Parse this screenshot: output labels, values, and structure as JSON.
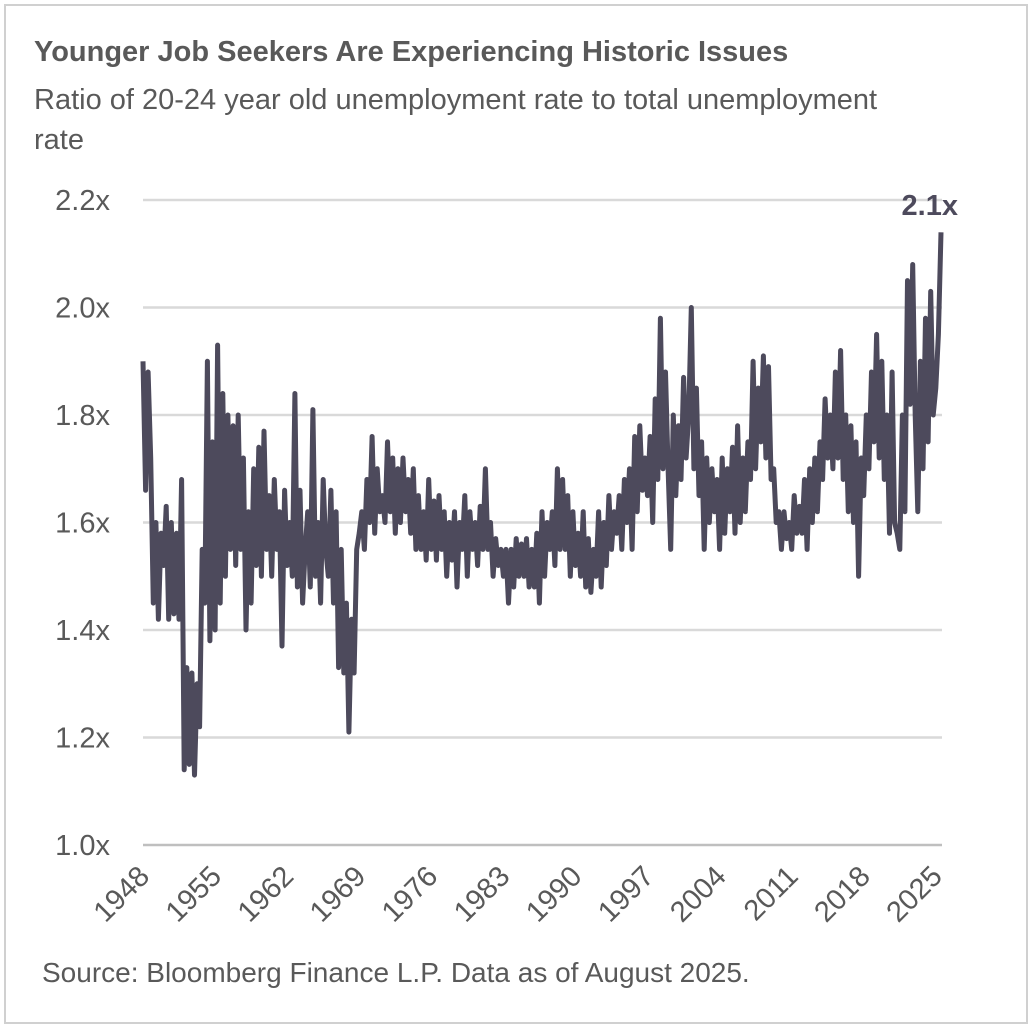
{
  "chart_data": {
    "type": "line",
    "title": "Younger Job Seekers Are Experiencing Historic Issues",
    "subtitle": "Ratio of 20-24 year old unemployment rate to total unemployment rate",
    "source": "Source: Bloomberg Finance L.P. Data as of August 2025.",
    "xlabel": "",
    "ylabel": "",
    "xlim": [
      1948,
      2025.6
    ],
    "ylim": [
      1.0,
      2.2
    ],
    "x_ticks": [
      "1948",
      "1955",
      "1962",
      "1969",
      "1976",
      "1983",
      "1990",
      "1997",
      "2004",
      "2011",
      "2018",
      "2025"
    ],
    "y_ticks": [
      {
        "value": 1.0,
        "label": "1.0x"
      },
      {
        "value": 1.2,
        "label": "1.2x"
      },
      {
        "value": 1.4,
        "label": "1.4x"
      },
      {
        "value": 1.6,
        "label": "1.6x"
      },
      {
        "value": 1.8,
        "label": "1.8x"
      },
      {
        "value": 2.0,
        "label": "2.0x"
      },
      {
        "value": 2.2,
        "label": "2.2x"
      }
    ],
    "grid": "horizontal",
    "line_color": "#4d4a5c",
    "annotation": {
      "label": "2.1x",
      "value": 2.14
    },
    "series": [
      {
        "start_year": 1948,
        "frequency": "quarterly",
        "values": [
          1.9,
          1.66,
          1.88,
          1.72,
          1.45,
          1.6,
          1.42,
          1.58,
          1.52,
          1.63,
          1.42,
          1.6,
          1.43,
          1.58,
          1.42,
          1.68,
          1.14,
          1.33,
          1.15,
          1.32,
          1.13,
          1.3,
          1.22,
          1.55,
          1.45,
          1.9,
          1.38,
          1.75,
          1.4,
          1.93,
          1.45,
          1.84,
          1.5,
          1.8,
          1.55,
          1.78,
          1.52,
          1.8,
          1.55,
          1.72,
          1.4,
          1.62,
          1.45,
          1.7,
          1.52,
          1.74,
          1.5,
          1.77,
          1.55,
          1.65,
          1.5,
          1.68,
          1.55,
          1.62,
          1.37,
          1.66,
          1.52,
          1.6,
          1.5,
          1.84,
          1.48,
          1.66,
          1.45,
          1.55,
          1.62,
          1.48,
          1.81,
          1.5,
          1.6,
          1.45,
          1.68,
          1.55,
          1.5,
          1.66,
          1.45,
          1.62,
          1.33,
          1.55,
          1.32,
          1.45,
          1.21,
          1.42,
          1.32,
          1.55,
          1.58,
          1.62,
          1.55,
          1.68,
          1.6,
          1.76,
          1.58,
          1.7,
          1.62,
          1.65,
          1.6,
          1.75,
          1.62,
          1.72,
          1.58,
          1.7,
          1.6,
          1.72,
          1.62,
          1.68,
          1.58,
          1.7,
          1.55,
          1.65,
          1.55,
          1.62,
          1.53,
          1.68,
          1.55,
          1.64,
          1.53,
          1.65,
          1.55,
          1.62,
          1.5,
          1.6,
          1.53,
          1.62,
          1.48,
          1.6,
          1.55,
          1.65,
          1.5,
          1.62,
          1.55,
          1.6,
          1.52,
          1.63,
          1.55,
          1.7,
          1.55,
          1.6,
          1.5,
          1.57,
          1.52,
          1.55,
          1.5,
          1.55,
          1.45,
          1.55,
          1.48,
          1.57,
          1.5,
          1.56,
          1.5,
          1.57,
          1.48,
          1.55,
          1.48,
          1.58,
          1.45,
          1.62,
          1.5,
          1.6,
          1.55,
          1.62,
          1.52,
          1.7,
          1.55,
          1.68,
          1.55,
          1.65,
          1.5,
          1.62,
          1.52,
          1.58,
          1.5,
          1.62,
          1.48,
          1.57,
          1.47,
          1.55,
          1.5,
          1.62,
          1.48,
          1.6,
          1.52,
          1.65,
          1.55,
          1.62,
          1.58,
          1.65,
          1.55,
          1.68,
          1.6,
          1.7,
          1.55,
          1.76,
          1.62,
          1.78,
          1.66,
          1.72,
          1.65,
          1.76,
          1.6,
          1.83,
          1.68,
          1.98,
          1.7,
          1.88,
          1.7,
          1.55,
          1.8,
          1.65,
          1.78,
          1.68,
          1.87,
          1.72,
          1.8,
          2.0,
          1.7,
          1.85,
          1.65,
          1.75,
          1.55,
          1.72,
          1.6,
          1.7,
          1.62,
          1.68,
          1.55,
          1.72,
          1.58,
          1.7,
          1.62,
          1.74,
          1.58,
          1.78,
          1.6,
          1.72,
          1.62,
          1.75,
          1.68,
          1.9,
          1.7,
          1.85,
          1.75,
          1.91,
          1.72,
          1.89,
          1.68,
          1.7,
          1.6,
          1.62,
          1.55,
          1.62,
          1.57,
          1.6,
          1.55,
          1.65,
          1.58,
          1.63,
          1.58,
          1.68,
          1.55,
          1.7,
          1.6,
          1.72,
          1.62,
          1.75,
          1.68,
          1.83,
          1.72,
          1.8,
          1.7,
          1.88,
          1.72,
          1.92,
          1.68,
          1.8,
          1.62,
          1.78,
          1.6,
          1.75,
          1.5,
          1.72,
          1.65,
          1.8,
          1.7,
          1.88,
          1.75,
          1.95,
          1.72,
          1.9,
          1.68,
          1.8,
          1.58,
          1.88,
          1.6,
          1.58,
          1.55,
          1.8,
          1.62,
          2.05,
          1.82,
          2.08,
          1.8,
          1.62,
          1.9,
          1.7,
          1.98,
          1.75,
          2.03,
          1.8,
          1.85,
          1.95,
          2.14
        ]
      }
    ]
  }
}
